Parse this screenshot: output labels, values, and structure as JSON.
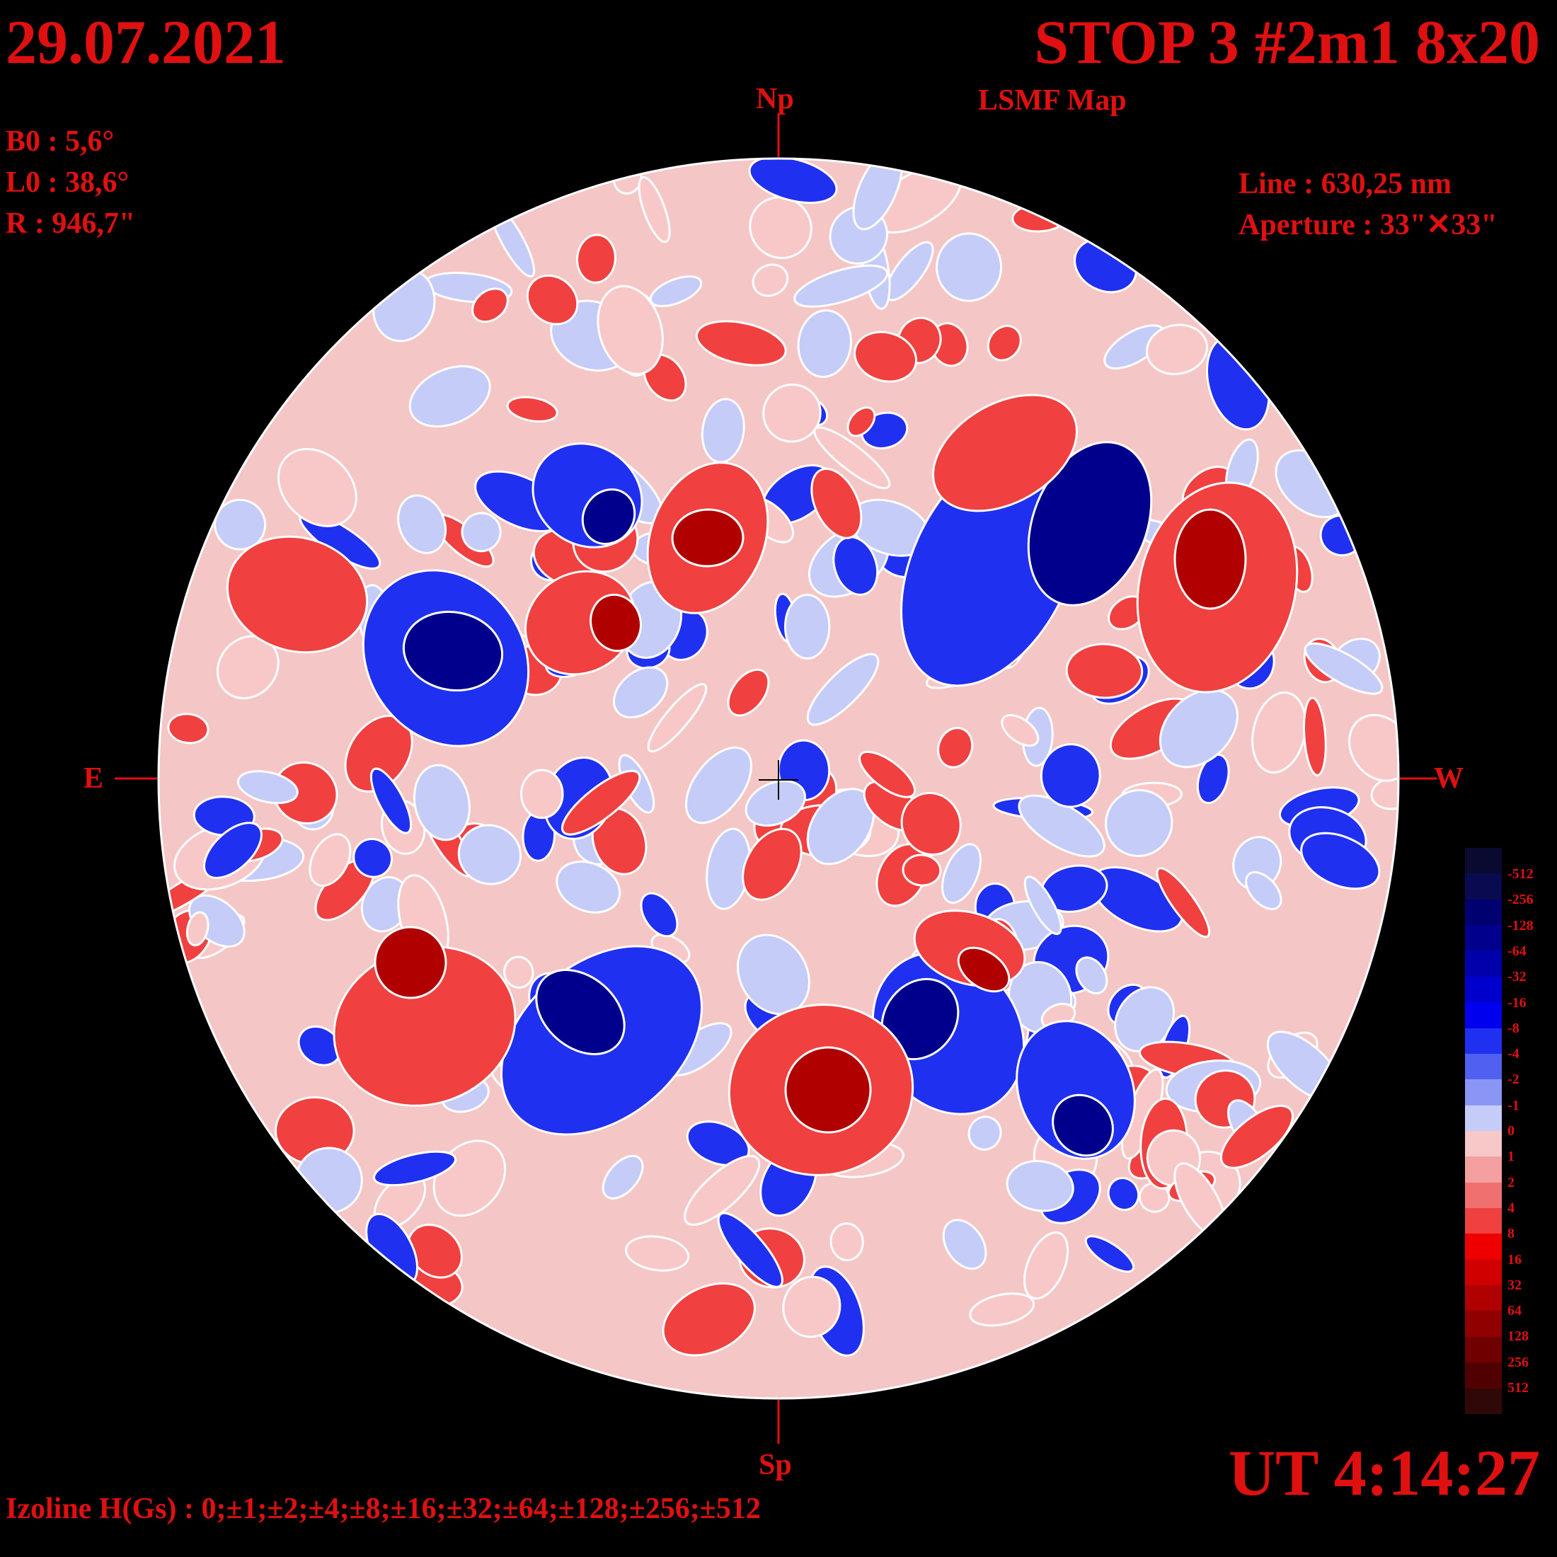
{
  "header": {
    "date": "29.07.2021",
    "station": "STOP 3 #2m1 8x20",
    "map_type": "LSMF  Map"
  },
  "params": {
    "b0": "B0 : 5,6°",
    "l0": "L0 : 38,6°",
    "radius": "R  : 946,7\"",
    "line": "Line :  630,25 nm",
    "aperture": "Aperture : 33\"✕33\""
  },
  "axes": {
    "north": "Np",
    "south": "Sp",
    "east": "E",
    "west": "W"
  },
  "footer": {
    "time": "UT 4:14:27",
    "izoline": "Izoline H(Gs) : 0;±1;±2;±4;±8;±16;±32;±64;±128;±256;±512"
  },
  "color_scale": {
    "labels": [
      "-512",
      "-256",
      "-128",
      "-64",
      "-32",
      "-16",
      "-8",
      "-4",
      "-2",
      "-1",
      "0",
      "1",
      "2",
      "4",
      "8",
      "16",
      "32",
      "64",
      "128",
      "256",
      "512"
    ],
    "colors": [
      "#0a0a30",
      "#0a0a50",
      "#000070",
      "#00008c",
      "#0000aa",
      "#0000cc",
      "#0000ee",
      "#2030f0",
      "#5060f0",
      "#8a96f5",
      "#c6ccf8",
      "#f8c8c8",
      "#f5a0a0",
      "#f07070",
      "#f04040",
      "#ee0000",
      "#d00000",
      "#b00000",
      "#900000",
      "#700000",
      "#500000",
      "#300808"
    ]
  },
  "legend_colors": {
    "strong_positive": "#b00000",
    "positive": "#f04040",
    "weak_positive": "#f8c8c8",
    "weak_negative": "#c6ccf8",
    "negative": "#2030f0",
    "strong_negative": "#00008c",
    "text": "#e01010"
  }
}
